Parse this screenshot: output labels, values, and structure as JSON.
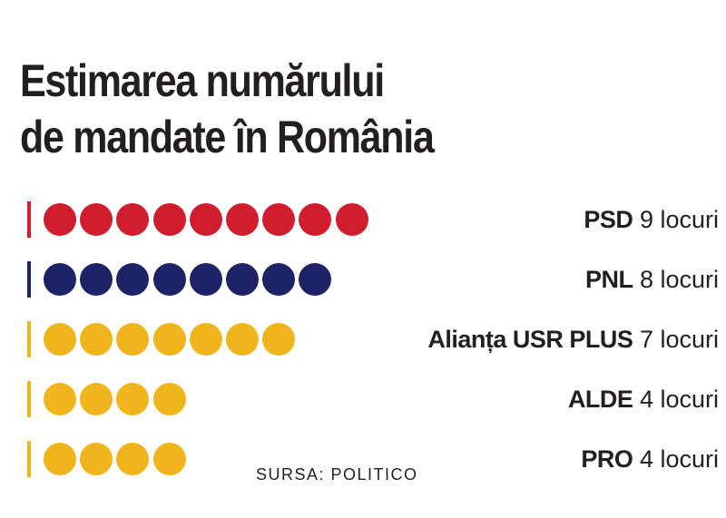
{
  "title_line1": "Estimarea numărului",
  "title_line2": "de mandate în România",
  "source": "SURSA: POLITICO",
  "chart_data": {
    "type": "bar",
    "title": "Estimarea numărului de mandate în România",
    "categories": [
      "PSD",
      "PNL",
      "Alianța USR PLUS",
      "ALDE",
      "PRO"
    ],
    "values": [
      9,
      8,
      7,
      4,
      4
    ],
    "colors": [
      "#d01e2f",
      "#1d2366",
      "#f0b51c",
      "#f0b51c",
      "#f0b51c"
    ],
    "value_labels": [
      "9 locuri",
      "8 locuri",
      "7 locuri",
      "4 locuri",
      "4 locuri"
    ]
  }
}
